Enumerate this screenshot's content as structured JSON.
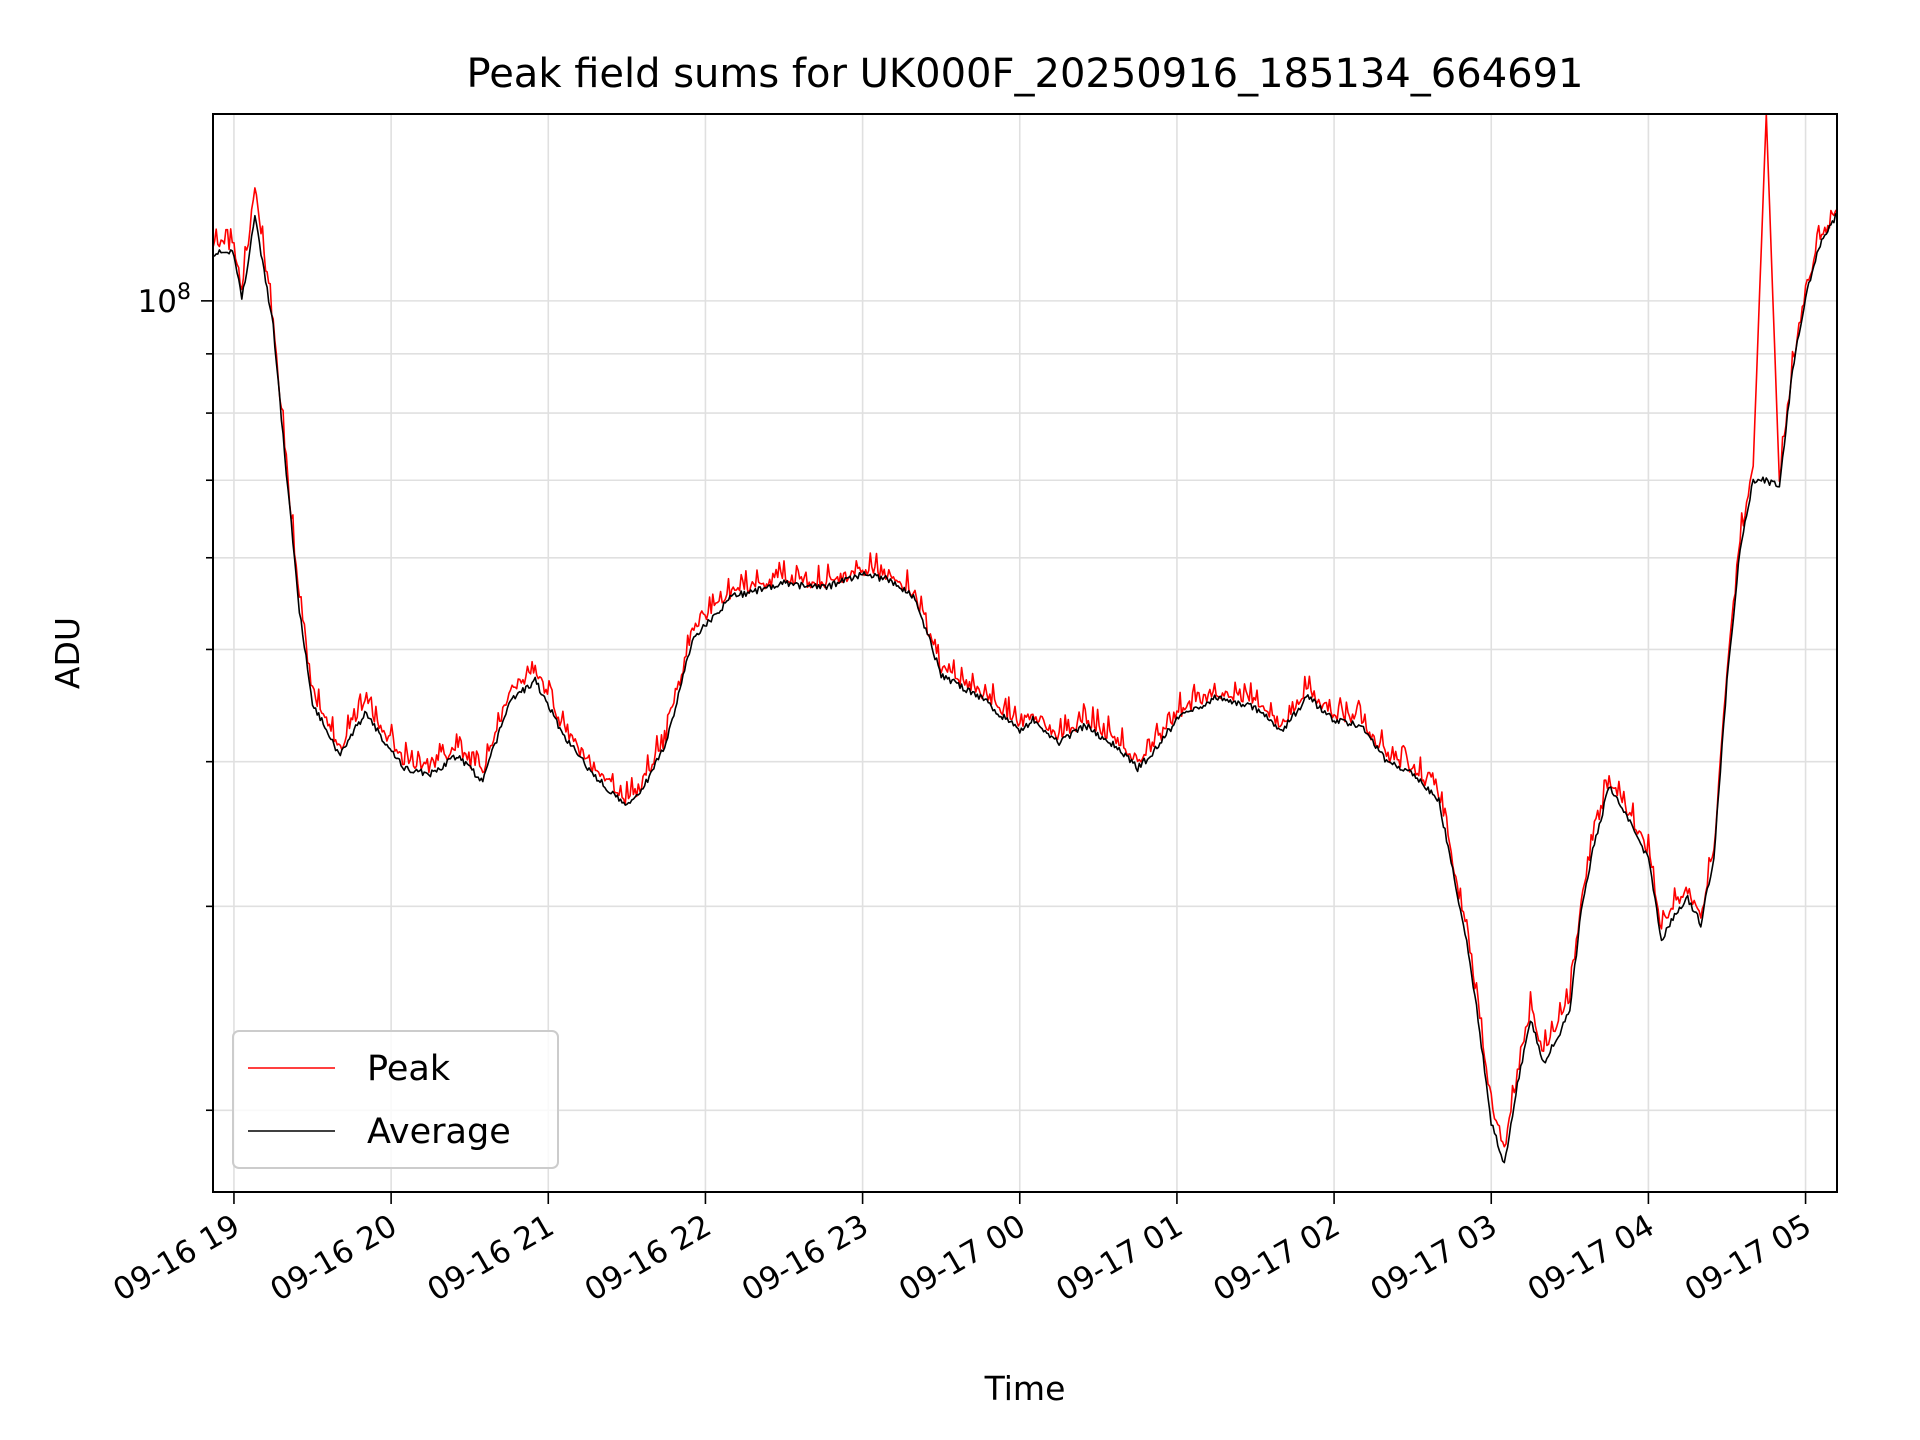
{
  "chart_data": {
    "type": "line",
    "title": "Peak field sums for UK000F_20250916_185134_664691",
    "xlabel": "Time",
    "ylabel": "ADU",
    "yscale": "log",
    "grid": true,
    "legend_placement": "lower-left",
    "xlim": [
      "09-16 18:52",
      "09-17 05:12"
    ],
    "ylim": [
      17000000,
      145000000
    ],
    "x_ticks": [
      "09-16 19",
      "09-16 20",
      "09-16 21",
      "09-16 22",
      "09-16 23",
      "09-17 00",
      "09-17 01",
      "09-17 02",
      "09-17 03",
      "09-17 04",
      "09-17 05"
    ],
    "y_major_tick": {
      "value": 100000000,
      "base": "10",
      "exponent": "8"
    },
    "series": [
      {
        "name": "Peak",
        "color": "#ff0000",
        "x": [
          "09-16 18:52",
          "09-16 19:00",
          "09-16 19:03",
          "09-16 19:08",
          "09-16 19:15",
          "09-16 19:20",
          "09-16 19:25",
          "09-16 19:30",
          "09-16 19:40",
          "09-16 19:50",
          "09-16 20:05",
          "09-16 20:15",
          "09-16 20:25",
          "09-16 20:35",
          "09-16 20:45",
          "09-16 20:55",
          "09-16 21:05",
          "09-16 21:15",
          "09-16 21:30",
          "09-16 21:35",
          "09-16 21:45",
          "09-16 21:55",
          "09-16 22:10",
          "09-16 22:30",
          "09-16 22:45",
          "09-16 23:00",
          "09-16 23:10",
          "09-16 23:20",
          "09-16 23:30",
          "09-16 23:45",
          "09-17 00:00",
          "09-17 00:05",
          "09-17 00:15",
          "09-17 00:25",
          "09-17 00:35",
          "09-17 00:45",
          "09-17 00:50",
          "09-17 01:00",
          "09-17 01:15",
          "09-17 01:30",
          "09-17 01:40",
          "09-17 01:50",
          "09-17 02:00",
          "09-17 02:10",
          "09-17 02:20",
          "09-17 02:30",
          "09-17 02:40",
          "09-17 02:50",
          "09-17 02:55",
          "09-17 03:00",
          "09-17 03:05",
          "09-17 03:10",
          "09-17 03:15",
          "09-17 03:20",
          "09-17 03:25",
          "09-17 03:30",
          "09-17 03:35",
          "09-17 03:40",
          "09-17 03:45",
          "09-17 03:50",
          "09-17 04:00",
          "09-17 04:05",
          "09-17 04:10",
          "09-17 04:15",
          "09-17 04:20",
          "09-17 04:25",
          "09-17 04:30",
          "09-17 04:35",
          "09-17 04:40",
          "09-17 04:45",
          "09-17 04:50",
          "09-17 04:55",
          "09-17 05:00",
          "09-17 05:05",
          "09-17 05:12"
        ],
        "values": [
          112000000,
          112000000,
          102000000,
          125000000,
          96000000,
          72000000,
          55000000,
          46000000,
          41000000,
          45000000,
          40000000,
          39500000,
          41000000,
          39000000,
          46000000,
          48000000,
          43000000,
          40000000,
          37000000,
          38000000,
          42000000,
          52000000,
          56000000,
          57500000,
          57000000,
          58500000,
          58000000,
          56000000,
          48000000,
          46000000,
          43000000,
          44000000,
          42000000,
          43500000,
          42000000,
          40000000,
          41000000,
          44000000,
          46000000,
          45000000,
          43000000,
          46000000,
          44000000,
          43500000,
          40500000,
          39500000,
          37500000,
          29000000,
          24500000,
          20000000,
          18500000,
          21500000,
          24500000,
          22500000,
          23500000,
          25000000,
          31000000,
          35000000,
          38500000,
          37000000,
          33500000,
          28500000,
          30000000,
          31000000,
          29500000,
          33500000,
          48000000,
          62000000,
          72000000,
          145000000,
          70000000,
          88000000,
          102000000,
          112000000,
          120000000
        ]
      },
      {
        "name": "Average",
        "color": "#000000",
        "x": [
          "09-16 18:52",
          "09-16 19:00",
          "09-16 19:03",
          "09-16 19:08",
          "09-16 19:15",
          "09-16 19:20",
          "09-16 19:25",
          "09-16 19:30",
          "09-16 19:40",
          "09-16 19:50",
          "09-16 20:05",
          "09-16 20:15",
          "09-16 20:25",
          "09-16 20:35",
          "09-16 20:45",
          "09-16 20:55",
          "09-16 21:05",
          "09-16 21:15",
          "09-16 21:30",
          "09-16 21:35",
          "09-16 21:45",
          "09-16 21:55",
          "09-16 22:10",
          "09-16 22:30",
          "09-16 22:45",
          "09-16 23:00",
          "09-16 23:10",
          "09-16 23:20",
          "09-16 23:30",
          "09-16 23:45",
          "09-17 00:00",
          "09-17 00:05",
          "09-17 00:15",
          "09-17 00:25",
          "09-17 00:35",
          "09-17 00:45",
          "09-17 00:50",
          "09-17 01:00",
          "09-17 01:15",
          "09-17 01:30",
          "09-17 01:40",
          "09-17 01:50",
          "09-17 02:00",
          "09-17 02:10",
          "09-17 02:20",
          "09-17 02:30",
          "09-17 02:40",
          "09-17 02:50",
          "09-17 02:55",
          "09-17 03:00",
          "09-17 03:05",
          "09-17 03:10",
          "09-17 03:15",
          "09-17 03:20",
          "09-17 03:25",
          "09-17 03:30",
          "09-17 03:35",
          "09-17 03:40",
          "09-17 03:45",
          "09-17 03:50",
          "09-17 04:00",
          "09-17 04:05",
          "09-17 04:10",
          "09-17 04:15",
          "09-17 04:20",
          "09-17 04:25",
          "09-17 04:30",
          "09-17 04:35",
          "09-17 04:40",
          "09-17 04:45",
          "09-17 04:50",
          "09-17 04:55",
          "09-17 05:00",
          "09-17 05:05",
          "09-17 05:12"
        ],
        "values": [
          110000000,
          110000000,
          100000000,
          118000000,
          95000000,
          71000000,
          54000000,
          45000000,
          40500000,
          44000000,
          39500000,
          39000000,
          40500000,
          38500000,
          45000000,
          47000000,
          42500000,
          39500000,
          36500000,
          37500000,
          41500000,
          51000000,
          55500000,
          57000000,
          56500000,
          58000000,
          57500000,
          55500000,
          47500000,
          45500000,
          42500000,
          43500000,
          41500000,
          43000000,
          41500000,
          39500000,
          40500000,
          43500000,
          45500000,
          44500000,
          42500000,
          45500000,
          43500000,
          43000000,
          40000000,
          39000000,
          37000000,
          28500000,
          24000000,
          19500000,
          18000000,
          21000000,
          24000000,
          22000000,
          23000000,
          24500000,
          30500000,
          34500000,
          38000000,
          36500000,
          33000000,
          28000000,
          29500000,
          30500000,
          29000000,
          33000000,
          47000000,
          61000000,
          70000000,
          70000000,
          69000000,
          87000000,
          101000000,
          111000000,
          119000000
        ]
      }
    ]
  }
}
